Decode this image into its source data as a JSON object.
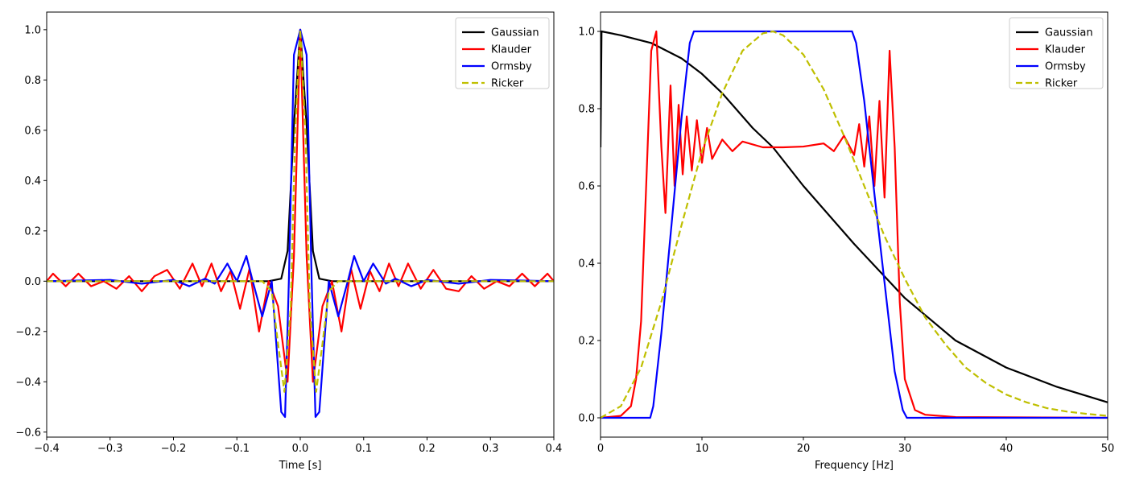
{
  "chart_data": [
    {
      "type": "line",
      "xlabel": "Time [s]",
      "ylabel": "",
      "xlim": [
        -0.4,
        0.4
      ],
      "ylim": [
        -0.62,
        1.07
      ],
      "xticks": [
        -0.4,
        -0.3,
        -0.2,
        -0.1,
        0.0,
        0.1,
        0.2,
        0.3,
        0.4
      ],
      "xtick_labels": [
        "−0.4",
        "−0.3",
        "−0.2",
        "−0.1",
        "0.0",
        "0.1",
        "0.2",
        "0.3",
        "0.4"
      ],
      "yticks": [
        -0.6,
        -0.4,
        -0.2,
        0.0,
        0.2,
        0.4,
        0.6,
        0.8,
        1.0
      ],
      "ytick_labels": [
        "−0.6",
        "−0.4",
        "−0.2",
        "0.0",
        "0.2",
        "0.4",
        "0.6",
        "0.8",
        "1.0"
      ],
      "grid": false,
      "legend": "top-right",
      "series": [
        {
          "name": "Gaussian",
          "color": "#000000",
          "dash": false,
          "x": [
            -0.4,
            -0.05,
            -0.03,
            -0.02,
            -0.01,
            0.0,
            0.01,
            0.02,
            0.03,
            0.05,
            0.4
          ],
          "y": [
            0.0,
            0.0,
            0.01,
            0.12,
            0.62,
            1.0,
            0.62,
            0.12,
            0.01,
            0.0,
            0.0
          ]
        },
        {
          "name": "Klauder",
          "color": "#ff0000",
          "dash": false,
          "x": [
            -0.4,
            -0.39,
            -0.37,
            -0.35,
            -0.33,
            -0.31,
            -0.29,
            -0.27,
            -0.25,
            -0.23,
            -0.21,
            -0.19,
            -0.17,
            -0.155,
            -0.14,
            -0.125,
            -0.11,
            -0.095,
            -0.08,
            -0.065,
            -0.05,
            -0.035,
            -0.02,
            -0.01,
            0.0,
            0.01,
            0.02,
            0.035,
            0.05,
            0.065,
            0.08,
            0.095,
            0.11,
            0.125,
            0.14,
            0.155,
            0.17,
            0.19,
            0.21,
            0.23,
            0.25,
            0.27,
            0.29,
            0.31,
            0.33,
            0.35,
            0.37,
            0.39,
            0.4
          ],
          "y": [
            0.0,
            0.03,
            -0.02,
            0.03,
            -0.02,
            0.0,
            -0.03,
            0.02,
            -0.04,
            0.02,
            0.045,
            -0.03,
            0.07,
            -0.02,
            0.07,
            -0.04,
            0.04,
            -0.11,
            0.05,
            -0.2,
            0.0,
            -0.1,
            -0.4,
            0.1,
            1.0,
            0.1,
            -0.4,
            -0.1,
            0.0,
            -0.2,
            0.05,
            -0.11,
            0.04,
            -0.04,
            0.07,
            -0.02,
            0.07,
            -0.03,
            0.045,
            -0.03,
            -0.04,
            0.02,
            -0.03,
            0.0,
            -0.02,
            0.03,
            -0.02,
            0.03,
            0.0
          ]
        },
        {
          "name": "Ormsby",
          "color": "#0000ff",
          "dash": false,
          "x": [
            -0.4,
            -0.3,
            -0.25,
            -0.2,
            -0.175,
            -0.15,
            -0.135,
            -0.115,
            -0.1,
            -0.085,
            -0.075,
            -0.06,
            -0.045,
            -0.03,
            -0.024,
            -0.018,
            -0.01,
            0.0,
            0.01,
            0.018,
            0.024,
            0.03,
            0.045,
            0.06,
            0.075,
            0.085,
            0.1,
            0.115,
            0.135,
            0.15,
            0.175,
            0.2,
            0.25,
            0.3,
            0.4
          ],
          "y": [
            0.0,
            0.005,
            -0.01,
            0.005,
            -0.02,
            0.01,
            -0.01,
            0.07,
            0.0,
            0.1,
            0.0,
            -0.14,
            0.0,
            -0.52,
            -0.54,
            0.0,
            0.9,
            1.0,
            0.9,
            0.0,
            -0.54,
            -0.52,
            0.0,
            -0.14,
            0.0,
            0.1,
            0.0,
            0.07,
            -0.01,
            0.01,
            -0.02,
            0.005,
            -0.01,
            0.005,
            0.0
          ]
        },
        {
          "name": "Ricker",
          "color": "#bfbf00",
          "dash": true,
          "x": [
            -0.4,
            -0.06,
            -0.045,
            -0.035,
            -0.025,
            -0.015,
            -0.008,
            0.0,
            0.008,
            0.015,
            0.025,
            0.035,
            0.045,
            0.06,
            0.4
          ],
          "y": [
            0.0,
            0.0,
            -0.04,
            -0.25,
            -0.44,
            -0.1,
            0.6,
            1.0,
            0.6,
            -0.1,
            -0.44,
            -0.25,
            -0.04,
            0.0,
            0.0
          ]
        }
      ]
    },
    {
      "type": "line",
      "xlabel": "Frequency [Hz]",
      "ylabel": "",
      "xlim": [
        0,
        50
      ],
      "ylim": [
        -0.05,
        1.05
      ],
      "xticks": [
        0,
        10,
        20,
        30,
        40,
        50
      ],
      "xtick_labels": [
        "0",
        "10",
        "20",
        "30",
        "40",
        "50"
      ],
      "yticks": [
        0.0,
        0.2,
        0.4,
        0.6,
        0.8,
        1.0
      ],
      "ytick_labels": [
        "0.0",
        "0.2",
        "0.4",
        "0.6",
        "0.8",
        "1.0"
      ],
      "grid": false,
      "legend": "top-right",
      "series": [
        {
          "name": "Gaussian",
          "color": "#000000",
          "dash": false,
          "x": [
            0,
            0.1,
            2,
            5,
            8,
            10,
            12,
            15,
            17,
            20,
            25,
            30,
            35,
            40,
            45,
            50
          ],
          "y": [
            0.7,
            1.0,
            0.99,
            0.97,
            0.93,
            0.89,
            0.84,
            0.75,
            0.7,
            0.6,
            0.45,
            0.31,
            0.2,
            0.13,
            0.08,
            0.04
          ]
        },
        {
          "name": "Klauder",
          "color": "#ff0000",
          "dash": false,
          "x": [
            0,
            2,
            3,
            3.5,
            4,
            4.5,
            5,
            5.5,
            6,
            6.4,
            6.9,
            7.3,
            7.7,
            8.1,
            8.5,
            9,
            9.5,
            10,
            10.5,
            11,
            12,
            13,
            14,
            16,
            18,
            20,
            22,
            23,
            24,
            25,
            25.5,
            26,
            26.5,
            27,
            27.5,
            28,
            28.5,
            29,
            29.5,
            30,
            31,
            32,
            35,
            50
          ],
          "y": [
            0.0,
            0.005,
            0.03,
            0.1,
            0.25,
            0.6,
            0.95,
            1.0,
            0.7,
            0.53,
            0.86,
            0.6,
            0.81,
            0.63,
            0.78,
            0.64,
            0.77,
            0.66,
            0.75,
            0.67,
            0.72,
            0.69,
            0.715,
            0.7,
            0.7,
            0.702,
            0.71,
            0.69,
            0.73,
            0.68,
            0.76,
            0.65,
            0.78,
            0.6,
            0.82,
            0.57,
            0.95,
            0.7,
            0.3,
            0.1,
            0.02,
            0.008,
            0.002,
            0.0
          ]
        },
        {
          "name": "Ormsby",
          "color": "#0000ff",
          "dash": false,
          "x": [
            0,
            4.9,
            5.2,
            6,
            7,
            8,
            8.8,
            9.2,
            24.8,
            25.2,
            26,
            27,
            28,
            29,
            29.8,
            30.2,
            50
          ],
          "y": [
            0.0,
            0.0,
            0.03,
            0.22,
            0.5,
            0.78,
            0.97,
            1.0,
            1.0,
            0.97,
            0.82,
            0.58,
            0.35,
            0.12,
            0.02,
            0.0,
            0.0
          ]
        },
        {
          "name": "Ricker",
          "color": "#bfbf00",
          "dash": true,
          "x": [
            0,
            2,
            4,
            6,
            8,
            10,
            12,
            14,
            16,
            17,
            18,
            20,
            22,
            24,
            26,
            28,
            30,
            32,
            34,
            36,
            38,
            40,
            42,
            44,
            46,
            48,
            50
          ],
          "y": [
            0.0,
            0.03,
            0.13,
            0.3,
            0.5,
            0.69,
            0.84,
            0.95,
            0.995,
            1.0,
            0.99,
            0.94,
            0.85,
            0.73,
            0.6,
            0.47,
            0.36,
            0.26,
            0.19,
            0.13,
            0.09,
            0.06,
            0.04,
            0.025,
            0.016,
            0.01,
            0.005
          ]
        }
      ]
    }
  ]
}
